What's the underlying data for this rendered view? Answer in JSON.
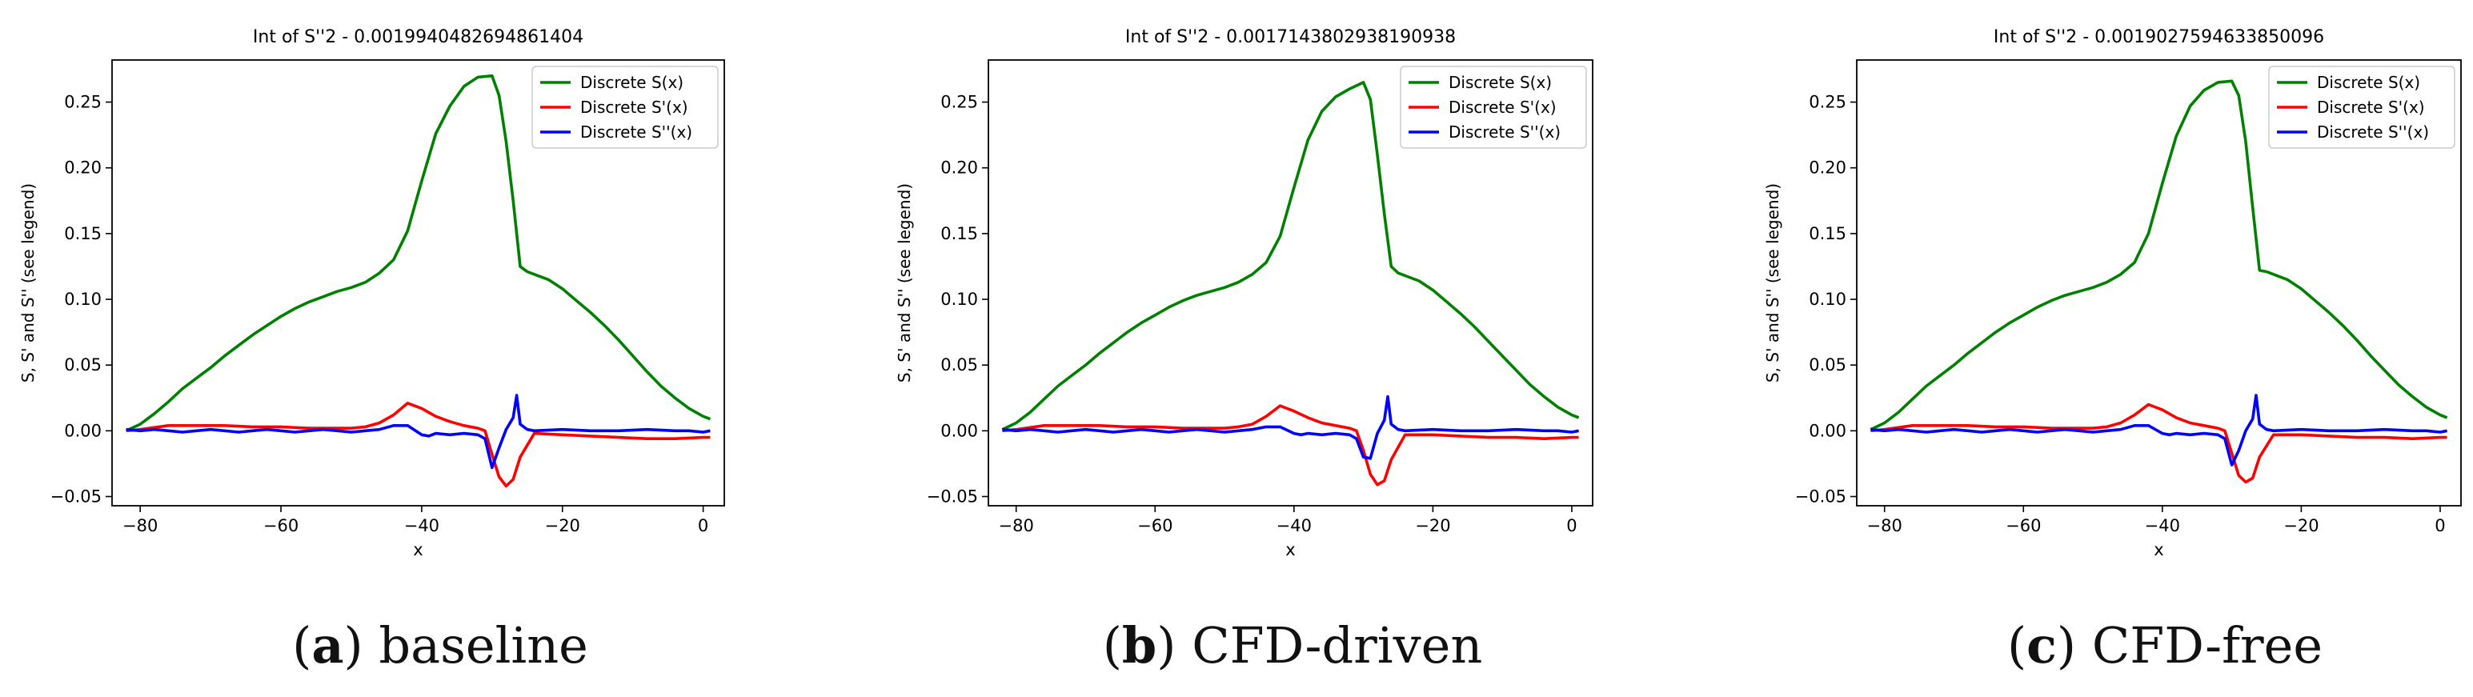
{
  "chart_data": [
    {
      "type": "line",
      "panel_id": "a",
      "caption_label": "baseline",
      "title": "Int of S''2 - 0.0019940482694861404",
      "xlabel": "x",
      "ylabel": "S, S' and S'' (see legend)",
      "xlim": [
        -84,
        3
      ],
      "ylim": [
        -0.057,
        0.282
      ],
      "xticks": [
        -80,
        -60,
        -40,
        -20,
        0
      ],
      "yticks": [
        -0.05,
        0.0,
        0.05,
        0.1,
        0.15,
        0.2,
        0.25
      ],
      "ytick_labels": [
        "-0.05",
        "0.00",
        "0.05",
        "0.10",
        "0.15",
        "0.20",
        "0.25"
      ],
      "legend_position": "top-right",
      "series": [
        {
          "name": "Discrete S(x)",
          "color": "#008000",
          "x": [
            -82,
            -80,
            -78,
            -76,
            -74,
            -72,
            -70,
            -68,
            -66,
            -64,
            -62,
            -60,
            -58,
            -56,
            -54,
            -52,
            -50,
            -48,
            -46,
            -44,
            -42,
            -40,
            -38,
            -36,
            -34,
            -32,
            -30,
            -29,
            -28,
            -27,
            -26,
            -25,
            -24,
            -22,
            -20,
            -18,
            -16,
            -14,
            -12,
            -10,
            -8,
            -6,
            -4,
            -2,
            0,
            1
          ],
          "y": [
            0.0,
            0.005,
            0.013,
            0.022,
            0.032,
            0.04,
            0.048,
            0.057,
            0.065,
            0.073,
            0.08,
            0.087,
            0.093,
            0.098,
            0.102,
            0.106,
            0.109,
            0.113,
            0.12,
            0.13,
            0.152,
            0.19,
            0.226,
            0.247,
            0.262,
            0.269,
            0.27,
            0.255,
            0.22,
            0.175,
            0.125,
            0.121,
            0.119,
            0.115,
            0.108,
            0.099,
            0.09,
            0.08,
            0.069,
            0.057,
            0.045,
            0.034,
            0.025,
            0.017,
            0.011,
            0.009
          ]
        },
        {
          "name": "Discrete S'(x)",
          "color": "#ff0000",
          "x": [
            -82,
            -80,
            -76,
            -72,
            -68,
            -64,
            -60,
            -56,
            -52,
            -50,
            -48,
            -46,
            -44,
            -42,
            -40,
            -38,
            -36,
            -34,
            -32,
            -31,
            -30,
            -29,
            -28,
            -27,
            -26,
            -24,
            -20,
            -16,
            -12,
            -8,
            -4,
            0,
            1
          ],
          "y": [
            0.0,
            0.001,
            0.004,
            0.004,
            0.004,
            0.003,
            0.003,
            0.002,
            0.002,
            0.002,
            0.003,
            0.006,
            0.012,
            0.021,
            0.017,
            0.011,
            0.007,
            0.004,
            0.002,
            0.0,
            -0.018,
            -0.035,
            -0.042,
            -0.037,
            -0.02,
            -0.002,
            -0.003,
            -0.004,
            -0.005,
            -0.006,
            -0.006,
            -0.005,
            -0.005
          ]
        },
        {
          "name": "Discrete S''(x)",
          "color": "#0000ff",
          "x": [
            -82,
            -80,
            -78,
            -76,
            -74,
            -72,
            -70,
            -68,
            -66,
            -64,
            -62,
            -60,
            -58,
            -56,
            -54,
            -52,
            -50,
            -48,
            -46,
            -44,
            -42,
            -40,
            -39,
            -38,
            -36,
            -34,
            -32,
            -31,
            -30,
            -29,
            -28,
            -27,
            -26.5,
            -26,
            -25,
            -24,
            -20,
            -16,
            -12,
            -8,
            -4,
            -2,
            0,
            1
          ],
          "y": [
            0.001,
            0.0,
            0.001,
            0.0,
            -0.001,
            0.0,
            0.001,
            0.0,
            -0.001,
            0.0,
            0.001,
            0.0,
            -0.001,
            0.0,
            0.001,
            0.0,
            -0.001,
            0.0,
            0.001,
            0.004,
            0.004,
            -0.003,
            -0.004,
            -0.002,
            -0.003,
            -0.002,
            -0.003,
            -0.006,
            -0.028,
            -0.013,
            0.001,
            0.01,
            0.027,
            0.005,
            0.001,
            0.0,
            0.001,
            0.0,
            0.0,
            0.001,
            0.0,
            0.0,
            -0.001,
            0.0
          ]
        }
      ]
    },
    {
      "type": "line",
      "panel_id": "b",
      "caption_label": "CFD-driven",
      "title": "Int of S''2 - 0.0017143802938190938",
      "xlabel": "x",
      "ylabel": "S, S' and S'' (see legend)",
      "xlim": [
        -84,
        3
      ],
      "ylim": [
        -0.057,
        0.282
      ],
      "xticks": [
        -80,
        -60,
        -40,
        -20,
        0
      ],
      "yticks": [
        -0.05,
        0.0,
        0.05,
        0.1,
        0.15,
        0.2,
        0.25
      ],
      "ytick_labels": [
        "-0.05",
        "0.00",
        "0.05",
        "0.10",
        "0.15",
        "0.20",
        "0.25"
      ],
      "legend_position": "top-right",
      "series": [
        {
          "name": "Discrete S(x)",
          "color": "#008000",
          "x": [
            -82,
            -80,
            -78,
            -76,
            -74,
            -72,
            -70,
            -68,
            -66,
            -64,
            -62,
            -60,
            -58,
            -56,
            -54,
            -52,
            -50,
            -48,
            -46,
            -44,
            -42,
            -40,
            -38,
            -36,
            -34,
            -32,
            -30,
            -29,
            -28,
            -27,
            -26,
            -25,
            -24,
            -22,
            -20,
            -18,
            -16,
            -14,
            -12,
            -10,
            -8,
            -6,
            -4,
            -2,
            0,
            1
          ],
          "y": [
            0.001,
            0.006,
            0.014,
            0.024,
            0.034,
            0.042,
            0.05,
            0.059,
            0.067,
            0.075,
            0.082,
            0.088,
            0.094,
            0.099,
            0.103,
            0.106,
            0.109,
            0.113,
            0.119,
            0.128,
            0.148,
            0.185,
            0.221,
            0.243,
            0.254,
            0.26,
            0.265,
            0.252,
            0.21,
            0.165,
            0.125,
            0.12,
            0.118,
            0.114,
            0.107,
            0.098,
            0.089,
            0.079,
            0.068,
            0.057,
            0.046,
            0.035,
            0.026,
            0.018,
            0.012,
            0.01
          ]
        },
        {
          "name": "Discrete S'(x)",
          "color": "#ff0000",
          "x": [
            -82,
            -80,
            -76,
            -72,
            -68,
            -64,
            -60,
            -56,
            -52,
            -50,
            -48,
            -46,
            -44,
            -42,
            -40,
            -38,
            -36,
            -34,
            -32,
            -31,
            -30,
            -29,
            -28,
            -27,
            -26,
            -24,
            -20,
            -16,
            -12,
            -8,
            -4,
            0,
            1
          ],
          "y": [
            0.0,
            0.001,
            0.004,
            0.004,
            0.004,
            0.003,
            0.003,
            0.002,
            0.002,
            0.002,
            0.003,
            0.005,
            0.011,
            0.019,
            0.015,
            0.01,
            0.006,
            0.004,
            0.002,
            0.0,
            -0.015,
            -0.033,
            -0.041,
            -0.038,
            -0.022,
            -0.003,
            -0.003,
            -0.004,
            -0.005,
            -0.005,
            -0.006,
            -0.005,
            -0.005
          ]
        },
        {
          "name": "Discrete S''(x)",
          "color": "#0000ff",
          "x": [
            -82,
            -80,
            -78,
            -76,
            -74,
            -72,
            -70,
            -68,
            -66,
            -64,
            -62,
            -60,
            -58,
            -56,
            -54,
            -52,
            -50,
            -48,
            -46,
            -44,
            -42,
            -40,
            -39,
            -38,
            -36,
            -34,
            -32,
            -31,
            -30,
            -29,
            -28,
            -27,
            -26.5,
            -26,
            -25,
            -24,
            -20,
            -16,
            -12,
            -8,
            -4,
            -2,
            0,
            1
          ],
          "y": [
            0.001,
            0.0,
            0.001,
            0.0,
            -0.001,
            0.0,
            0.001,
            0.0,
            -0.001,
            0.0,
            0.001,
            0.0,
            -0.001,
            0.0,
            0.001,
            0.0,
            -0.001,
            0.0,
            0.001,
            0.003,
            0.003,
            -0.002,
            -0.003,
            -0.002,
            -0.003,
            -0.002,
            -0.003,
            -0.006,
            -0.02,
            -0.021,
            -0.002,
            0.008,
            0.026,
            0.005,
            0.001,
            0.0,
            0.001,
            0.0,
            0.0,
            0.001,
            0.0,
            0.0,
            -0.001,
            0.0
          ]
        }
      ]
    },
    {
      "type": "line",
      "panel_id": "c",
      "caption_label": "CFD-free",
      "title": "Int of S''2 - 0.0019027594633850096",
      "xlabel": "x",
      "ylabel": "S, S' and S'' (see legend)",
      "xlim": [
        -84,
        3
      ],
      "ylim": [
        -0.057,
        0.282
      ],
      "xticks": [
        -80,
        -60,
        -40,
        -20,
        0
      ],
      "yticks": [
        -0.05,
        0.0,
        0.05,
        0.1,
        0.15,
        0.2,
        0.25
      ],
      "ytick_labels": [
        "-0.05",
        "0.00",
        "0.05",
        "0.10",
        "0.15",
        "0.20",
        "0.25"
      ],
      "legend_position": "top-right",
      "series": [
        {
          "name": "Discrete S(x)",
          "color": "#008000",
          "x": [
            -82,
            -80,
            -78,
            -76,
            -74,
            -72,
            -70,
            -68,
            -66,
            -64,
            -62,
            -60,
            -58,
            -56,
            -54,
            -52,
            -50,
            -48,
            -46,
            -44,
            -42,
            -40,
            -38,
            -36,
            -34,
            -32,
            -30,
            -29,
            -28,
            -27,
            -26,
            -25,
            -24,
            -22,
            -20,
            -18,
            -16,
            -14,
            -12,
            -10,
            -8,
            -6,
            -4,
            -2,
            0,
            1
          ],
          "y": [
            0.001,
            0.006,
            0.014,
            0.024,
            0.034,
            0.042,
            0.05,
            0.059,
            0.067,
            0.075,
            0.082,
            0.088,
            0.094,
            0.099,
            0.103,
            0.106,
            0.109,
            0.113,
            0.119,
            0.128,
            0.15,
            0.188,
            0.224,
            0.247,
            0.259,
            0.265,
            0.266,
            0.255,
            0.22,
            0.17,
            0.122,
            0.121,
            0.119,
            0.115,
            0.108,
            0.099,
            0.09,
            0.08,
            0.069,
            0.057,
            0.046,
            0.035,
            0.026,
            0.018,
            0.012,
            0.01
          ]
        },
        {
          "name": "Discrete S'(x)",
          "color": "#ff0000",
          "x": [
            -82,
            -80,
            -76,
            -72,
            -68,
            -64,
            -60,
            -56,
            -52,
            -50,
            -48,
            -46,
            -44,
            -42,
            -40,
            -38,
            -36,
            -34,
            -32,
            -31,
            -30,
            -29,
            -28,
            -27,
            -26,
            -24,
            -20,
            -16,
            -12,
            -8,
            -4,
            0,
            1
          ],
          "y": [
            0.0,
            0.001,
            0.004,
            0.004,
            0.004,
            0.003,
            0.003,
            0.002,
            0.002,
            0.002,
            0.003,
            0.006,
            0.012,
            0.02,
            0.016,
            0.01,
            0.006,
            0.004,
            0.002,
            0.0,
            -0.017,
            -0.034,
            -0.039,
            -0.036,
            -0.02,
            -0.003,
            -0.003,
            -0.004,
            -0.005,
            -0.005,
            -0.006,
            -0.005,
            -0.005
          ]
        },
        {
          "name": "Discrete S''(x)",
          "color": "#0000ff",
          "x": [
            -82,
            -80,
            -78,
            -76,
            -74,
            -72,
            -70,
            -68,
            -66,
            -64,
            -62,
            -60,
            -58,
            -56,
            -54,
            -52,
            -50,
            -48,
            -46,
            -44,
            -42,
            -40,
            -39,
            -38,
            -36,
            -34,
            -32,
            -31,
            -30,
            -29,
            -28,
            -27,
            -26.5,
            -26,
            -25,
            -24,
            -20,
            -16,
            -12,
            -8,
            -4,
            -2,
            0,
            1
          ],
          "y": [
            0.001,
            0.0,
            0.001,
            0.0,
            -0.001,
            0.0,
            0.001,
            0.0,
            -0.001,
            0.0,
            0.001,
            0.0,
            -0.001,
            0.0,
            0.001,
            0.0,
            -0.001,
            0.0,
            0.001,
            0.004,
            0.004,
            -0.002,
            -0.003,
            -0.002,
            -0.003,
            -0.002,
            -0.003,
            -0.006,
            -0.026,
            -0.015,
            0.0,
            0.009,
            0.027,
            0.005,
            0.001,
            0.0,
            0.001,
            0.0,
            0.0,
            0.001,
            0.0,
            0.0,
            -0.001,
            0.0
          ]
        }
      ]
    }
  ],
  "captions": [
    {
      "letter": "a",
      "text": "baseline"
    },
    {
      "letter": "b",
      "text": "CFD-driven"
    },
    {
      "letter": "c",
      "text": "CFD-free"
    }
  ]
}
